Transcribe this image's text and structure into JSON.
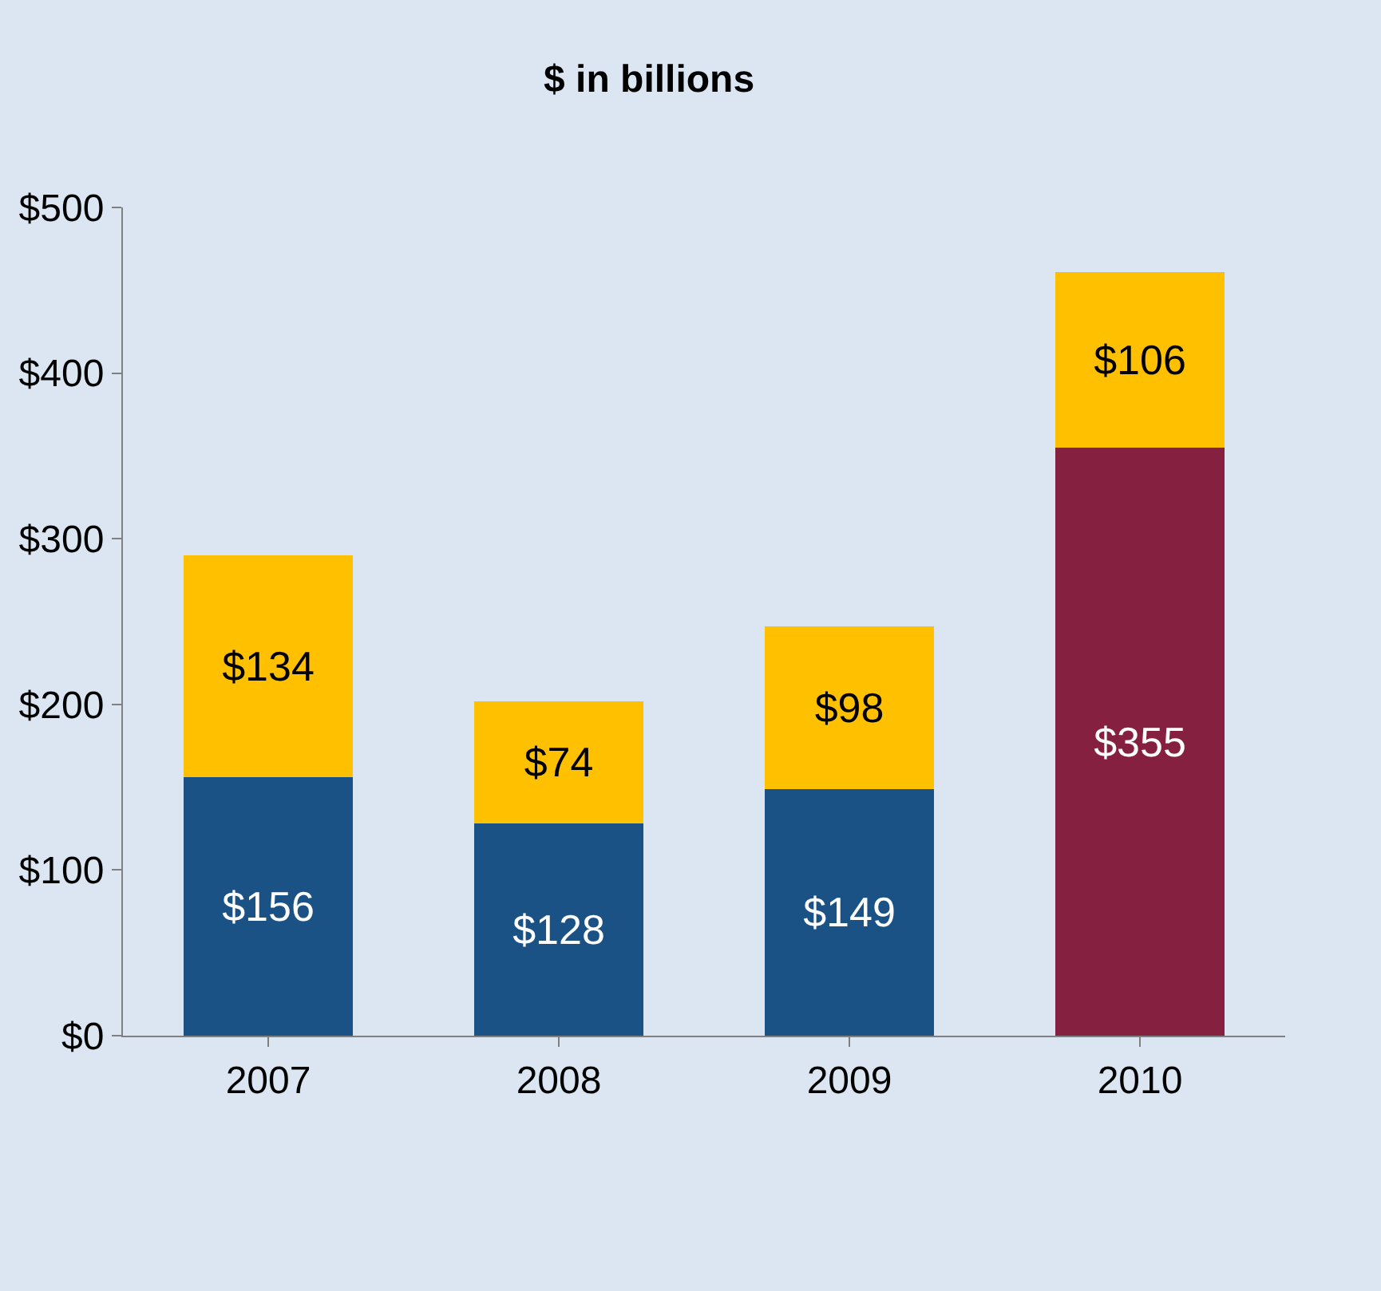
{
  "chart_data": {
    "type": "bar",
    "title": "$ in billions",
    "stacked": true,
    "categories": [
      "2007",
      "2008",
      "2009",
      "2010"
    ],
    "series": [
      {
        "color": "#1a5285",
        "values": [
          156,
          128,
          149,
          null
        ],
        "value_labels": [
          "$156",
          "$128",
          "$149",
          null
        ]
      },
      {
        "color": "#862040",
        "values": [
          null,
          null,
          null,
          355
        ],
        "value_labels": [
          null,
          null,
          null,
          "$355"
        ]
      },
      {
        "color": "#ffc000",
        "values": [
          134,
          74,
          98,
          106
        ],
        "value_labels": [
          "$134",
          "$74",
          "$98",
          "$106"
        ]
      }
    ],
    "ylim": [
      0,
      500
    ],
    "yticks": [
      {
        "value": 0,
        "label": "$0"
      },
      {
        "value": 100,
        "label": "$100"
      },
      {
        "value": 200,
        "label": "$200"
      },
      {
        "value": 300,
        "label": "$300"
      },
      {
        "value": 400,
        "label": "$400"
      },
      {
        "value": 500,
        "label": "$500"
      }
    ],
    "grid": false
  }
}
